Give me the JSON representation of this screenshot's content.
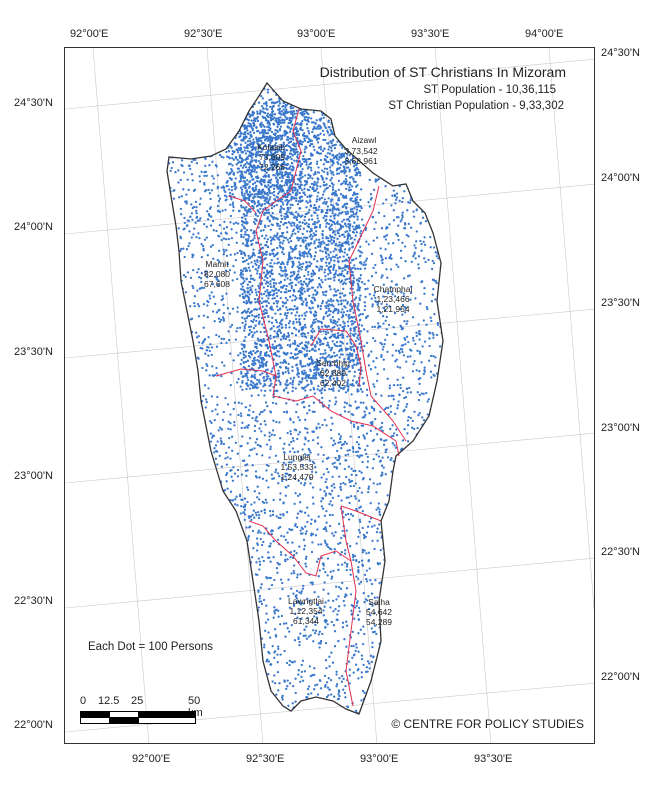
{
  "map": {
    "title": "Distribution of ST Christians In Mizoram",
    "st_population": "ST Population - 10,36,115",
    "st_christian_population": "ST Christian Population - 9,33,302",
    "legend_dot": "Each Dot = 100 Persons",
    "credit": "© CENTRE FOR POLICY STUDIES",
    "dot_color": "#3a78cc",
    "district_border_color": "#e03050",
    "state_border_color": "#333333",
    "scale": {
      "labels": [
        "0",
        "12.5",
        "25",
        "50 km"
      ]
    },
    "top_lon_labels": [
      "92°00'E",
      "92°30'E",
      "93°00'E",
      "93°30'E",
      "94°00'E"
    ],
    "bottom_lon_labels": [
      "92°00'E",
      "92°30'E",
      "93°00'E",
      "93°30'E"
    ],
    "left_lat_labels": [
      "24°30'N",
      "24°00'N",
      "23°30'N",
      "23°00'N",
      "22°30'N",
      "22°00'N"
    ],
    "right_lat_labels": [
      "24°30'N",
      "24°00'N",
      "23°30'N",
      "23°00'N",
      "22°30'N",
      "22°00'N"
    ],
    "districts": [
      {
        "name": "Aizawl",
        "total": "3,73,542",
        "christian": "3,68,961"
      },
      {
        "name": "Kolasib",
        "total": "73,609",
        "christian": "72,266"
      },
      {
        "name": "Mamit",
        "total": "82,080",
        "christian": "67,608"
      },
      {
        "name": "Champhai",
        "total": "1,23,466",
        "christian": "1,21,954"
      },
      {
        "name": "Serchhip",
        "total": "62,889",
        "christian": "62,402"
      },
      {
        "name": "Lunglei",
        "total": "1,53,533",
        "christian": "1,24,479"
      },
      {
        "name": "Lawngtlai",
        "total": "1,12,354",
        "christian": "61,344"
      },
      {
        "name": "Saiha",
        "total": "54,642",
        "christian": "54,289"
      }
    ]
  }
}
